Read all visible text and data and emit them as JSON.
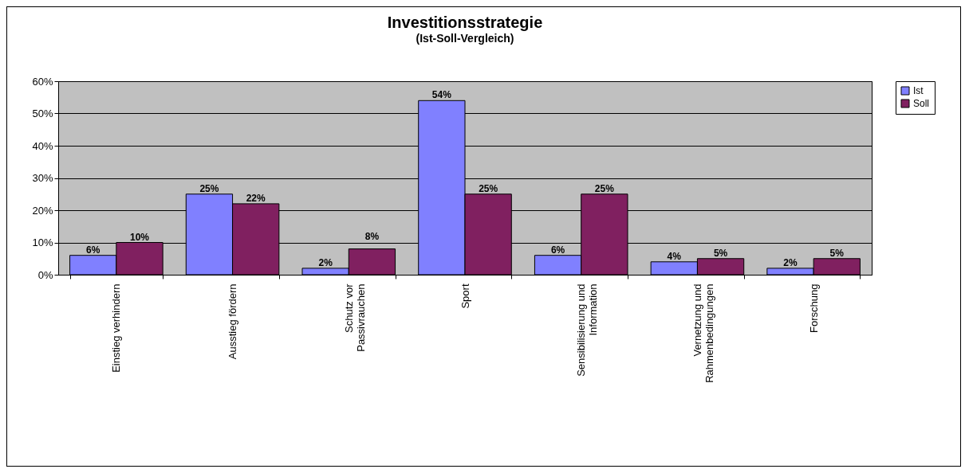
{
  "chart_data": {
    "type": "bar",
    "title": "Investitionsstrategie",
    "subtitle": "(Ist-Soll-Vergleich)",
    "categories": [
      "Einstieg verhindern",
      "Ausstieg fördern",
      "Schutz vor Passivrauchen",
      "Sport",
      "Sensibilisierung und Information",
      "Vernetzung und Rahmenbedingungen",
      "Forschung"
    ],
    "series": [
      {
        "name": "Ist",
        "color": "#8080ff",
        "values": [
          6,
          25,
          2,
          54,
          6,
          4,
          2
        ],
        "value_labels": [
          "6%",
          "25%",
          "2%",
          "54%",
          "6%",
          "4%",
          "2%"
        ]
      },
      {
        "name": "Soll",
        "color": "#802060",
        "values": [
          10,
          22,
          8,
          25,
          25,
          5,
          5
        ],
        "value_labels": [
          "10%",
          "22%",
          "8%",
          "25%",
          "25%",
          "5%",
          "5%"
        ]
      }
    ],
    "ylim": [
      0,
      60
    ],
    "yticks": [
      {
        "value": 0,
        "label": "0%"
      },
      {
        "value": 10,
        "label": "10%"
      },
      {
        "value": 20,
        "label": "20%"
      },
      {
        "value": 30,
        "label": "30%"
      },
      {
        "value": 40,
        "label": "40%"
      },
      {
        "value": 50,
        "label": "50%"
      },
      {
        "value": 60,
        "label": "60%"
      }
    ],
    "grid": "y",
    "legend": "right"
  }
}
